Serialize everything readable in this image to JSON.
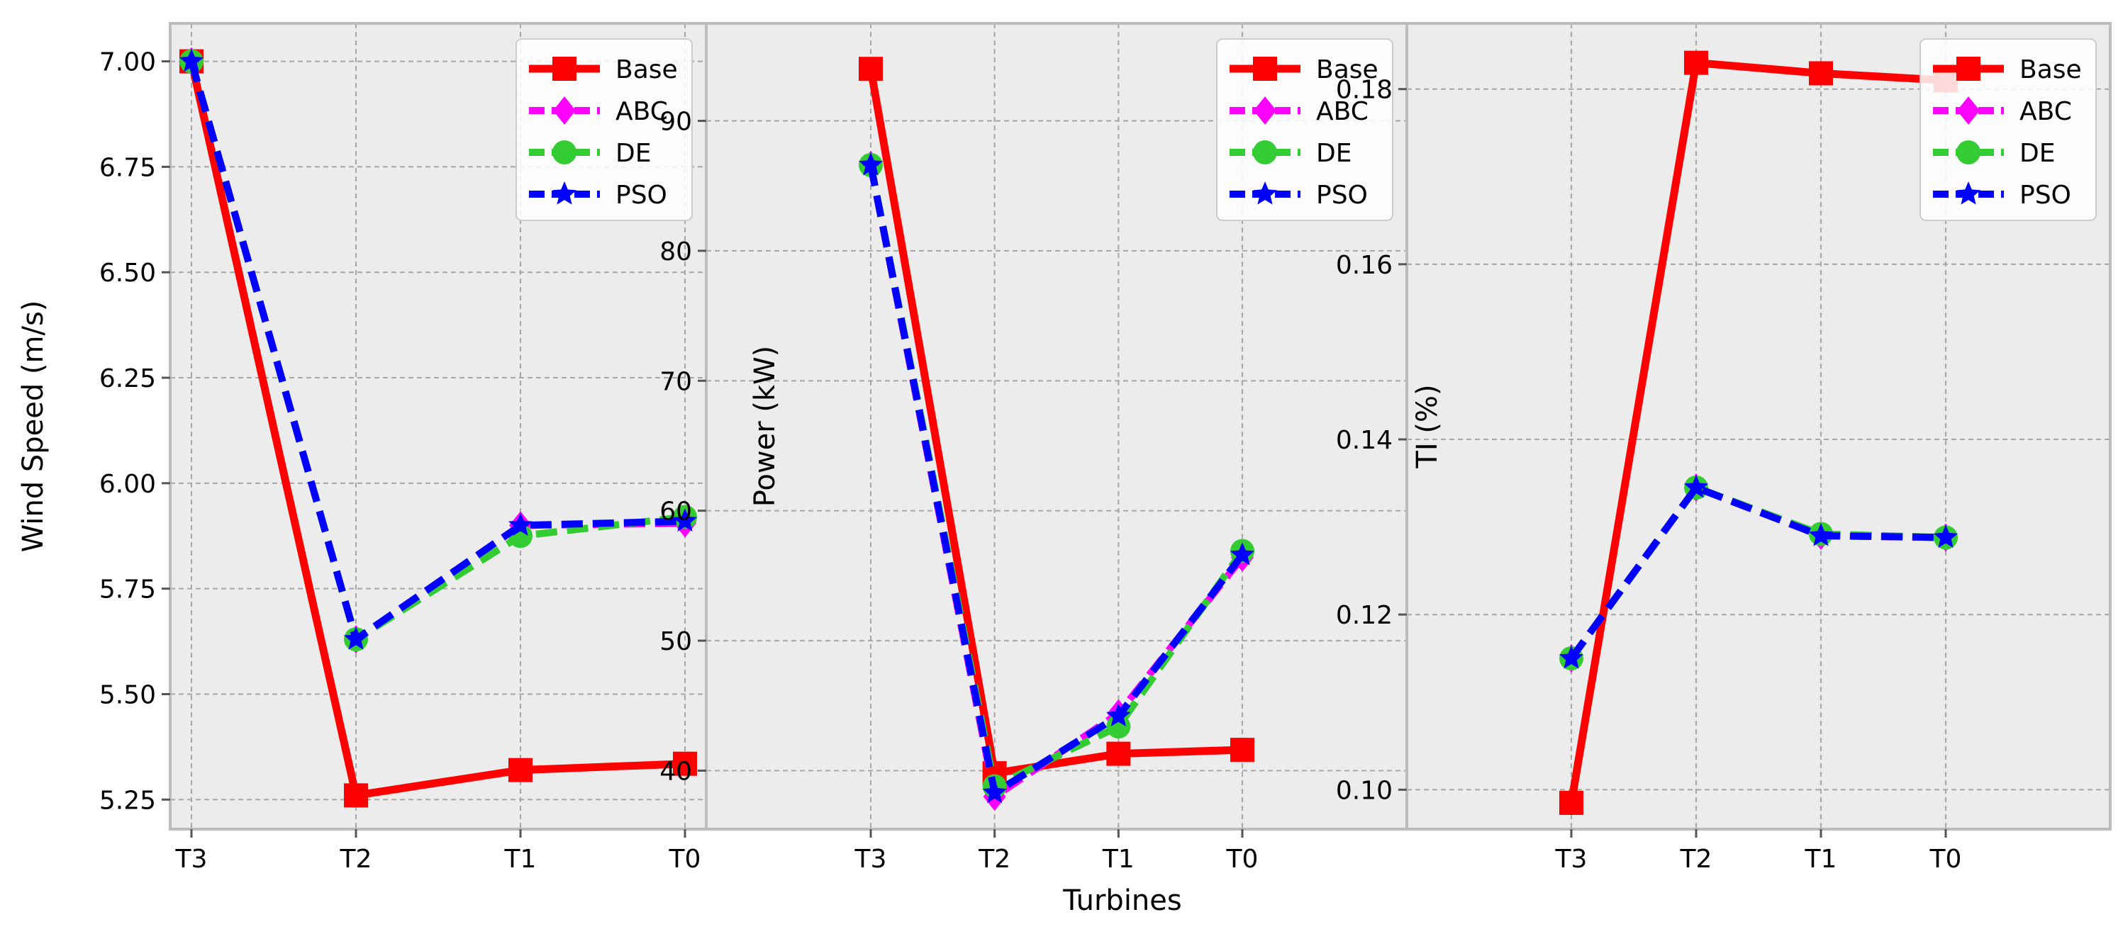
{
  "figure": {
    "xlabel": "Turbines"
  },
  "colors": {
    "panel_bg": "#ececec",
    "grid": "#a6a6a6",
    "spine": "#bcbcbc",
    "Base": "#ff0000",
    "ABC": "#ff00ff",
    "DE": "#33cc33",
    "PSO": "#0000ff"
  },
  "chart_data": [
    {
      "type": "line",
      "title": "",
      "xlabel": "",
      "ylabel": "Wind Speed (m/s)",
      "categories": [
        "T3",
        "T2",
        "T1",
        "T0"
      ],
      "ylim": [
        5.18,
        7.09
      ],
      "yticks": [
        5.25,
        5.5,
        5.75,
        6.0,
        6.25,
        6.5,
        6.75,
        7.0
      ],
      "ytick_labels": [
        "5.25",
        "5.50",
        "5.75",
        "6.00",
        "6.25",
        "6.50",
        "6.75",
        "7.00"
      ],
      "grid": true,
      "legend": "top-right",
      "series": [
        {
          "name": "Base",
          "values": [
            7.0,
            5.26,
            5.32,
            5.335
          ]
        },
        {
          "name": "ABC",
          "values": [
            7.0,
            5.63,
            5.9,
            5.905
          ]
        },
        {
          "name": "DE",
          "values": [
            7.0,
            5.63,
            5.875,
            5.92
          ]
        },
        {
          "name": "PSO",
          "values": [
            7.0,
            5.63,
            5.9,
            5.91
          ]
        }
      ]
    },
    {
      "type": "line",
      "title": "",
      "xlabel": "Turbines",
      "ylabel": "Power (kW)",
      "categories": [
        "T3",
        "T2",
        "T1",
        "T0"
      ],
      "ylim": [
        35.5,
        97.5
      ],
      "yticks": [
        40,
        50,
        60,
        70,
        80,
        90
      ],
      "ytick_labels": [
        "40",
        "50",
        "60",
        "70",
        "80",
        "90"
      ],
      "grid": true,
      "legend": "top-right",
      "series": [
        {
          "name": "Base",
          "values": [
            94.0,
            39.8,
            41.3,
            41.6
          ]
        },
        {
          "name": "ABC",
          "values": [
            86.6,
            38.0,
            44.4,
            56.4
          ]
        },
        {
          "name": "DE",
          "values": [
            86.6,
            38.8,
            43.4,
            56.9
          ]
        },
        {
          "name": "PSO",
          "values": [
            86.6,
            38.3,
            44.2,
            56.6
          ]
        }
      ]
    },
    {
      "type": "line",
      "title": "",
      "xlabel": "",
      "ylabel": "TI (%)",
      "categories": [
        "T3",
        "T2",
        "T1",
        "T0"
      ],
      "ylim": [
        0.0955,
        0.1875
      ],
      "yticks": [
        0.1,
        0.12,
        0.14,
        0.16,
        0.18
      ],
      "ytick_labels": [
        "0.10",
        "0.12",
        "0.14",
        "0.16",
        "0.18"
      ],
      "grid": true,
      "legend": "top-right",
      "series": [
        {
          "name": "Base",
          "values": [
            0.0985,
            0.183,
            0.1818,
            0.181
          ]
        },
        {
          "name": "ABC",
          "values": [
            0.115,
            0.1345,
            0.129,
            0.1288
          ]
        },
        {
          "name": "DE",
          "values": [
            0.115,
            0.1345,
            0.1292,
            0.1288
          ]
        },
        {
          "name": "PSO",
          "values": [
            0.115,
            0.1345,
            0.129,
            0.1288
          ]
        }
      ]
    }
  ]
}
